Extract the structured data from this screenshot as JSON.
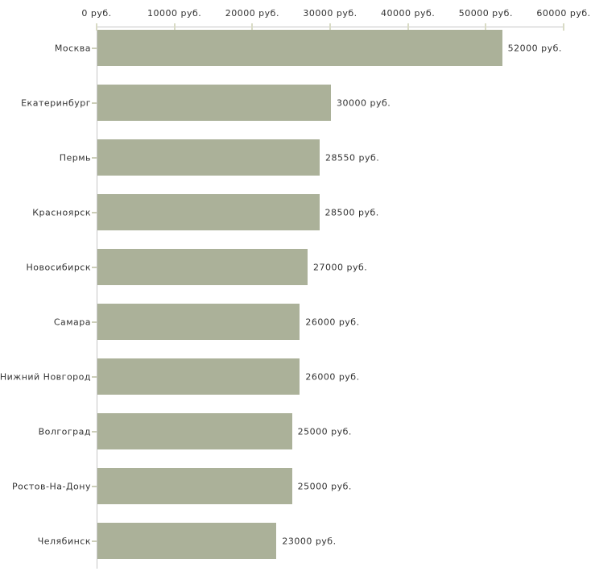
{
  "chart_data": {
    "type": "bar",
    "orientation": "horizontal",
    "title": "",
    "xlabel": "",
    "ylabel": "",
    "unit": "руб.",
    "categories": [
      "Москва",
      "Екатеринбург",
      "Пермь",
      "Красноярск",
      "Новосибирск",
      "Самара",
      "Нижний Новгород",
      "Волгоград",
      "Ростов-На-Дону",
      "Челябинск"
    ],
    "values": [
      52000,
      30000,
      28550,
      28500,
      27000,
      26000,
      26000,
      25000,
      25000,
      23000
    ],
    "value_labels": [
      "52000 руб.",
      "30000 руб.",
      "28550 руб.",
      "28500 руб.",
      "27000 руб.",
      "26000 руб.",
      "26000 руб.",
      "25000 руб.",
      "25000 руб.",
      "23000 руб."
    ],
    "x_ticks": [
      0,
      10000,
      20000,
      30000,
      40000,
      50000,
      60000
    ],
    "x_tick_labels": [
      "0 руб.",
      "10000 руб.",
      "20000 руб.",
      "30000 руб.",
      "40000 руб.",
      "50000 руб.",
      "60000 руб."
    ],
    "xlim": [
      0,
      60000
    ],
    "grid": false,
    "legend": null,
    "colors": {
      "bar_fill": "#abb199",
      "axis_line": "#c6c6c6",
      "axis_tick": "#d9dbc5",
      "category_tick": "#ccceb8",
      "text": "#333333",
      "background": "#ffffff"
    }
  }
}
